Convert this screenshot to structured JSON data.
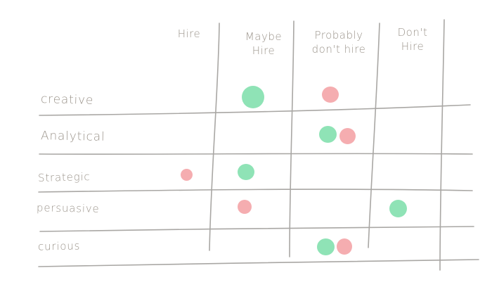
{
  "columns": [
    {
      "id": "hire",
      "label": "Hire"
    },
    {
      "id": "maybe-hire",
      "label": "Maybe\nHire"
    },
    {
      "id": "probably-dont-hire",
      "label": "Probably\ndon't hire"
    },
    {
      "id": "dont-hire",
      "label": "Don't\nHire"
    }
  ],
  "rows": [
    {
      "id": "creative",
      "label": "creative"
    },
    {
      "id": "analytical",
      "label": "Analytical"
    },
    {
      "id": "strategic",
      "label": "Strategic"
    },
    {
      "id": "persuasive",
      "label": "persuasive"
    },
    {
      "id": "curious",
      "label": "curious"
    }
  ],
  "dots": [
    {
      "row": "creative",
      "column": "maybe-hire",
      "color": "#8fe3b6",
      "size": "large"
    },
    {
      "row": "creative",
      "column": "probably-dont-hire",
      "color": "#f5adb0",
      "size": "medium"
    },
    {
      "row": "analytical",
      "column": "probably-dont-hire",
      "color": "#8fe3b6",
      "size": "medium"
    },
    {
      "row": "analytical",
      "column": "probably-dont-hire",
      "color": "#f5adb0",
      "size": "medium"
    },
    {
      "row": "strategic",
      "column": "hire",
      "color": "#f5adb0",
      "size": "small"
    },
    {
      "row": "strategic",
      "column": "maybe-hire",
      "color": "#8fe3b6",
      "size": "medium"
    },
    {
      "row": "persuasive",
      "column": "maybe-hire",
      "color": "#f5adb0",
      "size": "small"
    },
    {
      "row": "persuasive",
      "column": "dont-hire",
      "color": "#8fe3b6",
      "size": "medium"
    },
    {
      "row": "curious",
      "column": "probably-dont-hire",
      "color": "#8fe3b6",
      "size": "medium"
    },
    {
      "row": "curious",
      "column": "probably-dont-hire",
      "color": "#f5adb0",
      "size": "medium"
    }
  ],
  "colors": {
    "line": "#a9a7a4",
    "text": "#9b948b",
    "green": "#8fe3b6",
    "pink": "#f5adb0"
  }
}
